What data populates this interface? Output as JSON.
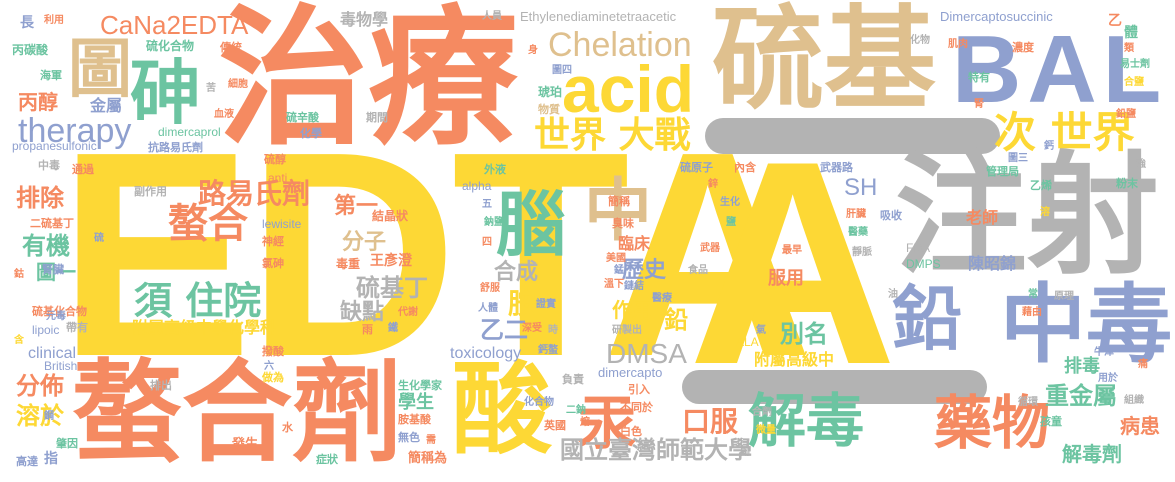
{
  "palette": {
    "yellow": "#fdd835",
    "orange": "#f58a61",
    "green": "#6cc4a1",
    "tan": "#dfc08e",
    "blue": "#8fa0cf",
    "gray": "#b3b3b3",
    "pink": "#e98fb8",
    "lime": "#a8d66a"
  },
  "words": [
    {
      "text": "EDTA",
      "color": "#fdd835"
    },
    {
      "text": "A",
      "color": "#fdd835"
    },
    {
      "text": "治療",
      "color": "#f58a61"
    },
    {
      "text": "硫基",
      "color": "#dfc08e"
    },
    {
      "text": "BAL",
      "color": "#8fa0cf"
    },
    {
      "text": "注射",
      "color": "#b3b3b3"
    },
    {
      "text": "螯合劑",
      "color": "#f58a61"
    },
    {
      "text": "酸",
      "color": "#fdd835"
    },
    {
      "text": "中毒",
      "color": "#8fa0cf"
    },
    {
      "text": "砷",
      "color": "#6cc4a1"
    },
    {
      "text": "圖",
      "color": "#dfc08e"
    },
    {
      "text": "acid",
      "color": "#fdd835"
    },
    {
      "text": "中",
      "color": "#dfc08e"
    },
    {
      "text": "腦",
      "color": "#6cc4a1"
    },
    {
      "text": "鉛",
      "color": "#8fa0cf"
    },
    {
      "text": "解毒",
      "color": "#6cc4a1"
    },
    {
      "text": "藥物",
      "color": "#f58a61"
    },
    {
      "text": "汞",
      "color": "#f58a61"
    },
    {
      "text": "CaNa2EDTA",
      "color": "#f58a61"
    },
    {
      "text": "Chelation",
      "color": "#dfc08e"
    },
    {
      "text": "therapy",
      "color": "#8fa0cf"
    },
    {
      "text": "世界 大戰",
      "color": "#fdd835"
    },
    {
      "text": "次 世界",
      "color": "#fdd835"
    },
    {
      "text": "螯合",
      "color": "#f58a61"
    },
    {
      "text": "須 住院",
      "color": "#6cc4a1"
    },
    {
      "text": "路易氏劑",
      "color": "#f58a61"
    },
    {
      "text": "DMSA",
      "color": "#b3b3b3"
    },
    {
      "text": "國立臺灣師範大學",
      "color": "#b3b3b3"
    },
    {
      "text": "解毒劑",
      "color": "#6cc4a1"
    },
    {
      "text": "重金屬",
      "color": "#6cc4a1"
    },
    {
      "text": "病患",
      "color": "#f58a61"
    },
    {
      "text": "口服",
      "color": "#f58a61"
    },
    {
      "text": "排除",
      "color": "#f58a61"
    },
    {
      "text": "有機",
      "color": "#6cc4a1"
    },
    {
      "text": "分佈",
      "color": "#f58a61"
    },
    {
      "text": "溶於",
      "color": "#fdd835"
    },
    {
      "text": "SH",
      "color": "#8fa0cf"
    },
    {
      "text": "第一",
      "color": "#f58a61"
    },
    {
      "text": "分子",
      "color": "#dfc08e"
    },
    {
      "text": "合成",
      "color": "#b3b3b3"
    },
    {
      "text": "硫基丁",
      "color": "#b3b3b3"
    },
    {
      "text": "缺點",
      "color": "#b3b3b3"
    },
    {
      "text": "歷史",
      "color": "#8fa0cf"
    },
    {
      "text": "胺",
      "color": "#fdd835"
    },
    {
      "text": "乙二",
      "color": "#8fa0cf"
    },
    {
      "text": "作用",
      "color": "#fdd835"
    },
    {
      "text": "鉛",
      "color": "#fdd835"
    },
    {
      "text": "別名",
      "color": "#6cc4a1"
    },
    {
      "text": "丙醇",
      "color": "#f58a61"
    },
    {
      "text": "圖一",
      "color": "#6cc4a1"
    },
    {
      "text": "附屬高級中學化學科",
      "color": "#fdd835"
    },
    {
      "text": "附屬高級中",
      "color": "#fdd835"
    },
    {
      "text": "toxicology",
      "color": "#8fa0cf"
    },
    {
      "text": "clinical",
      "color": "#8fa0cf"
    },
    {
      "text": "學生",
      "color": "#6cc4a1"
    },
    {
      "text": "服用",
      "color": "#f58a61"
    },
    {
      "text": "陳昭錦",
      "color": "#8fa0cf"
    },
    {
      "text": "老師",
      "color": "#f58a61"
    },
    {
      "text": "排毒",
      "color": "#6cc4a1"
    },
    {
      "text": "臨床",
      "color": "#f58a61"
    },
    {
      "text": "毒物學",
      "color": "#b3b3b3"
    },
    {
      "text": "Ethylenediaminetetraacetic",
      "color": "#b3b3b3"
    },
    {
      "text": "Dimercaptosuccinic",
      "color": "#8fa0cf"
    },
    {
      "text": "propanesulfonic",
      "color": "#8fa0cf"
    },
    {
      "text": "dimercaprol",
      "color": "#6cc4a1"
    },
    {
      "text": "dimercapto",
      "color": "#8fa0cf"
    },
    {
      "text": "lewisite",
      "color": "#8fa0cf"
    },
    {
      "text": "lipoic",
      "color": "#8fa0cf"
    },
    {
      "text": "British",
      "color": "#8fa0cf"
    },
    {
      "text": "ALA",
      "color": "#fdd835"
    },
    {
      "text": "FDA",
      "color": "#b3b3b3"
    },
    {
      "text": "DMPS",
      "color": "#6cc4a1"
    },
    {
      "text": "alpha",
      "color": "#8fa0cf"
    },
    {
      "text": "anti",
      "color": "#f58a61"
    },
    {
      "text": "王彥澄",
      "color": "#f58a61"
    },
    {
      "text": "毒重",
      "color": "#f58a61"
    },
    {
      "text": "結晶狀",
      "color": "#f58a61"
    },
    {
      "text": "金屬",
      "color": "#8fa0cf"
    },
    {
      "text": "硫化合物",
      "color": "#6cc4a1"
    },
    {
      "text": "丙碳酸",
      "color": "#6cc4a1"
    },
    {
      "text": "海軍",
      "color": "#6cc4a1"
    },
    {
      "text": "傳統",
      "color": "#f58a61"
    },
    {
      "text": "琥珀",
      "color": "#6cc4a1"
    },
    {
      "text": "物質",
      "color": "#dfc08e"
    },
    {
      "text": "硫辛酸",
      "color": "#6cc4a1"
    },
    {
      "text": "化學",
      "color": "#8fa0cf"
    },
    {
      "text": "期間",
      "color": "#b3b3b3"
    },
    {
      "text": "抗路易氏劑",
      "color": "#8fa0cf"
    },
    {
      "text": "中毒",
      "color": "#b3b3b3"
    },
    {
      "text": "通過",
      "color": "#f58a61"
    },
    {
      "text": "硫醇",
      "color": "#f58a61"
    },
    {
      "text": "副作用",
      "color": "#b3b3b3"
    },
    {
      "text": "二硫基丁",
      "color": "#f58a61"
    },
    {
      "text": "腎臟",
      "color": "#8fa0cf"
    },
    {
      "text": "神經",
      "color": "#f58a61"
    },
    {
      "text": "氯砷",
      "color": "#f58a61"
    },
    {
      "text": "硫基化合物",
      "color": "#f58a61"
    },
    {
      "text": "元毒",
      "color": "#8fa0cf"
    },
    {
      "text": "帶有",
      "color": "#b3b3b3"
    },
    {
      "text": "撥酸",
      "color": "#f58a61"
    },
    {
      "text": "做為",
      "color": "#fdd835"
    },
    {
      "text": "排出",
      "color": "#b3b3b3"
    },
    {
      "text": "生化學家",
      "color": "#6cc4a1"
    },
    {
      "text": "負責",
      "color": "#b3b3b3"
    },
    {
      "text": "引入",
      "color": "#f58a61"
    },
    {
      "text": "不同於",
      "color": "#f58a61"
    },
    {
      "text": "二鈉",
      "color": "#6cc4a1"
    },
    {
      "text": "英國",
      "color": "#f58a61"
    },
    {
      "text": "胺基酸",
      "color": "#f58a61"
    },
    {
      "text": "無色",
      "color": "#8fa0cf"
    },
    {
      "text": "簡稱為",
      "color": "#f58a61"
    },
    {
      "text": "症狀",
      "color": "#6cc4a1"
    },
    {
      "text": "發生",
      "color": "#f58a61"
    },
    {
      "text": "水",
      "color": "#f58a61"
    },
    {
      "text": "肇因",
      "color": "#6cc4a1"
    },
    {
      "text": "高達",
      "color": "#8fa0cf"
    },
    {
      "text": "指",
      "color": "#8fa0cf"
    },
    {
      "text": "化合物",
      "color": "#8fa0cf"
    },
    {
      "text": "白色",
      "color": "#f58a61"
    },
    {
      "text": "溫下",
      "color": "#f58a61"
    },
    {
      "text": "鏈結",
      "color": "#8fa0cf"
    },
    {
      "text": "證實",
      "color": "#8fa0cf"
    },
    {
      "text": "研製出",
      "color": "#b3b3b3"
    },
    {
      "text": "醫療",
      "color": "#8fa0cf"
    },
    {
      "text": "食品",
      "color": "#b3b3b3"
    },
    {
      "text": "美國",
      "color": "#f58a61"
    },
    {
      "text": "臭味",
      "color": "#f58a61"
    },
    {
      "text": "武器",
      "color": "#f58a61"
    },
    {
      "text": "最早",
      "color": "#f58a61"
    },
    {
      "text": "靜脈",
      "color": "#b3b3b3"
    },
    {
      "text": "吸收",
      "color": "#8fa0cf"
    },
    {
      "text": "肝臟",
      "color": "#f58a61"
    },
    {
      "text": "醫藥",
      "color": "#6cc4a1"
    },
    {
      "text": "乙烯",
      "color": "#6cc4a1"
    },
    {
      "text": "管理局",
      "color": "#6cc4a1"
    },
    {
      "text": "武器路",
      "color": "#8fa0cf"
    },
    {
      "text": "內含",
      "color": "#f58a61"
    },
    {
      "text": "硫原子",
      "color": "#8fa0cf"
    },
    {
      "text": "簡稱",
      "color": "#f58a61"
    },
    {
      "text": "生化",
      "color": "#8fa0cf"
    },
    {
      "text": "外液",
      "color": "#6cc4a1"
    },
    {
      "text": "人體",
      "color": "#8fa0cf"
    },
    {
      "text": "舒服",
      "color": "#f58a61"
    },
    {
      "text": "深受",
      "color": "#f58a61"
    },
    {
      "text": "鈣螯",
      "color": "#8fa0cf"
    },
    {
      "text": "代謝",
      "color": "#f58a61"
    },
    {
      "text": "鐵",
      "color": "#8fa0cf"
    },
    {
      "text": "雨",
      "color": "#f58a61"
    },
    {
      "text": "六",
      "color": "#8fa0cf"
    },
    {
      "text": "痛",
      "color": "#f58a61"
    },
    {
      "text": "牛津",
      "color": "#8fa0cf"
    },
    {
      "text": "組織",
      "color": "#b3b3b3"
    },
    {
      "text": "孩童",
      "color": "#6cc4a1"
    },
    {
      "text": "循環",
      "color": "#b3b3b3"
    },
    {
      "text": "用於",
      "color": "#8fa0cf"
    },
    {
      "text": "原理",
      "color": "#b3b3b3"
    },
    {
      "text": "藉由",
      "color": "#f58a61"
    },
    {
      "text": "常",
      "color": "#6cc4a1"
    },
    {
      "text": "粉末",
      "color": "#6cc4a1"
    },
    {
      "text": "溶",
      "color": "#fdd835"
    },
    {
      "text": "鈣",
      "color": "#8fa0cf"
    },
    {
      "text": "強",
      "color": "#b3b3b3"
    },
    {
      "text": "圖三",
      "color": "#8fa0cf"
    },
    {
      "text": "腎",
      "color": "#f58a61"
    },
    {
      "text": "特有",
      "color": "#6cc4a1"
    },
    {
      "text": "肌肉",
      "color": "#f58a61"
    },
    {
      "text": "化物",
      "color": "#b3b3b3"
    },
    {
      "text": "濃度",
      "color": "#f58a61"
    },
    {
      "text": "乙",
      "color": "#f58a61"
    },
    {
      "text": "體",
      "color": "#6cc4a1"
    },
    {
      "text": "類",
      "color": "#f58a61"
    },
    {
      "text": "易士劑",
      "color": "#6cc4a1"
    },
    {
      "text": "合鹽",
      "color": "#fdd835"
    },
    {
      "text": "人員",
      "color": "#b3b3b3"
    },
    {
      "text": "身",
      "color": "#f58a61"
    },
    {
      "text": "圖四",
      "color": "#8fa0cf"
    },
    {
      "text": "鹽",
      "color": "#6cc4a1"
    },
    {
      "text": "鋅",
      "color": "#f58a61"
    },
    {
      "text": "五",
      "color": "#8fa0cf"
    },
    {
      "text": "鈉鹽",
      "color": "#6cc4a1"
    },
    {
      "text": "四",
      "color": "#f58a61"
    },
    {
      "text": "錳",
      "color": "#8fa0cf"
    },
    {
      "text": "油",
      "color": "#b3b3b3"
    },
    {
      "text": "氣",
      "color": "#8fa0cf"
    },
    {
      "text": "時",
      "color": "#b3b3b3"
    },
    {
      "text": "熔",
      "color": "#f58a61"
    },
    {
      "text": "合劑",
      "color": "#b3b3b3"
    },
    {
      "text": "微量",
      "color": "#fdd835"
    },
    {
      "text": "副",
      "color": "#b3b3b3"
    },
    {
      "text": "鉛鹽",
      "color": "#f58a61"
    },
    {
      "text": "細胞",
      "color": "#f58a61"
    },
    {
      "text": "血液",
      "color": "#f58a61"
    },
    {
      "text": "苦",
      "color": "#b3b3b3"
    },
    {
      "text": "利用",
      "color": "#f58a61"
    },
    {
      "text": "長",
      "color": "#8fa0cf"
    },
    {
      "text": "鈷",
      "color": "#f58a61"
    },
    {
      "text": "硫",
      "color": "#8fa0cf"
    },
    {
      "text": "含",
      "color": "#fdd835"
    },
    {
      "text": "鋼",
      "color": "#8fa0cf"
    },
    {
      "text": "需",
      "color": "#f58a61"
    }
  ]
}
